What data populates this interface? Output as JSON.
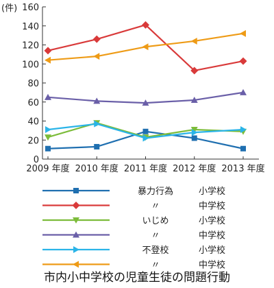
{
  "chart_data": {
    "type": "line",
    "title": "市内小中学校の児童生徒の問題行動",
    "ylabel": "(件)",
    "xlabel": "",
    "x": [
      "2009 年度",
      "2010 年度",
      "2011 年度",
      "2012 年度",
      "2013 年度"
    ],
    "ylim": [
      0,
      160
    ],
    "yticks": [
      0,
      20,
      40,
      60,
      80,
      100,
      120,
      140,
      160
    ],
    "grid": false,
    "legend_placement": "bottom",
    "series": [
      {
        "category": "暴力行為",
        "school": "小学校",
        "color": "#1f6fb0",
        "marker": "square",
        "values": [
          11,
          13,
          29,
          22,
          11
        ]
      },
      {
        "category": "〃",
        "school": "中学校",
        "color": "#d93a3a",
        "marker": "diamond",
        "values": [
          114,
          126,
          141,
          93,
          103
        ]
      },
      {
        "category": "いじめ",
        "school": "小学校",
        "color": "#7cbc3a",
        "marker": "triangle-down",
        "values": [
          23,
          38,
          23,
          31,
          29
        ]
      },
      {
        "category": "〃",
        "school": "中学校",
        "color": "#6a5fa8",
        "marker": "triangle-up",
        "values": [
          65,
          61,
          59,
          62,
          70
        ]
      },
      {
        "category": "不登校",
        "school": "小学校",
        "color": "#2ab4e8",
        "marker": "triangle-right",
        "values": [
          31,
          37,
          22,
          28,
          31
        ]
      },
      {
        "category": "〃",
        "school": "中学校",
        "color": "#ee9b16",
        "marker": "triangle-left",
        "values": [
          104,
          108,
          118,
          124,
          132
        ]
      }
    ]
  }
}
